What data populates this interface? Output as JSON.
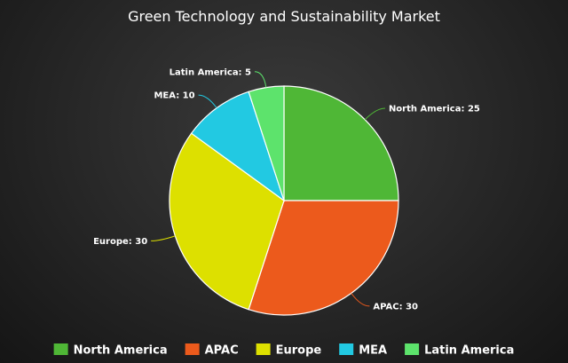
{
  "chart_data": {
    "type": "pie",
    "title": "Green Technology and Sustainability Market",
    "slices": [
      {
        "label": "North America",
        "value": 25,
        "color": "#4fb736"
      },
      {
        "label": "APAC",
        "value": 30,
        "color": "#ec5a1c"
      },
      {
        "label": "Europe",
        "value": 30,
        "color": "#dde000"
      },
      {
        "label": "MEA",
        "value": 10,
        "color": "#22c9e2"
      },
      {
        "label": "Latin America",
        "value": 5,
        "color": "#5de36c"
      }
    ],
    "start_angle_deg": 0,
    "direction": "clockwise",
    "legend_position": "bottom",
    "label_format": "{label}: {value}"
  }
}
